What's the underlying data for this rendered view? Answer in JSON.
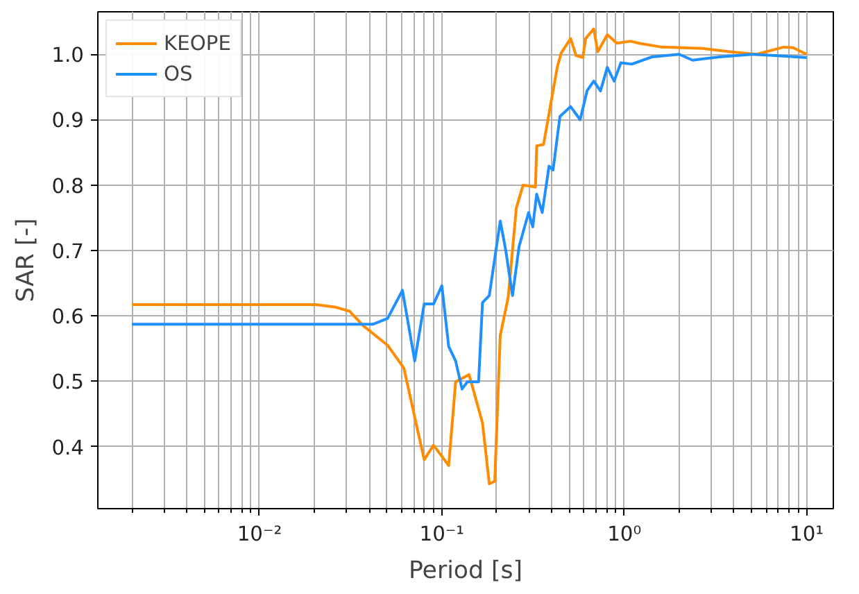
{
  "chart_data": {
    "type": "line",
    "xlabel": "Period [s]",
    "ylabel": "SAR [-]",
    "log": "x",
    "grid": true,
    "legend": "top left",
    "xlim": [
      0.0013,
      14
    ],
    "ylim": [
      0.305,
      1.065
    ],
    "xticks": [
      {
        "value": 0.01,
        "label": "10⁻²"
      },
      {
        "value": 0.1,
        "label": "10⁻¹"
      },
      {
        "value": 1,
        "label": "10⁰"
      },
      {
        "value": 10,
        "label": "10¹"
      }
    ],
    "yticks": [
      {
        "value": 0.4,
        "label": "0.4"
      },
      {
        "value": 0.5,
        "label": "0.5"
      },
      {
        "value": 0.6,
        "label": "0.6"
      },
      {
        "value": 0.7,
        "label": "0.7"
      },
      {
        "value": 0.8,
        "label": "0.8"
      },
      {
        "value": 0.9,
        "label": "0.9"
      },
      {
        "value": 1.0,
        "label": "1.0"
      }
    ],
    "series": [
      {
        "name": "KEOPE",
        "color": "#ff8c00",
        "x": [
          0.002,
          0.0204,
          0.0263,
          0.0312,
          0.037,
          0.0504,
          0.0619,
          0.08,
          0.09,
          0.109,
          0.119,
          0.141,
          0.167,
          0.182,
          0.195,
          0.209,
          0.231,
          0.256,
          0.279,
          0.326,
          0.331,
          0.361,
          0.429,
          0.451,
          0.508,
          0.544,
          0.593,
          0.614,
          0.68,
          0.716,
          0.807,
          0.91,
          1.08,
          1.2,
          1.6,
          2.68,
          3.77,
          5.31,
          7.48,
          8.43,
          10
        ],
        "values": [
          0.617,
          0.617,
          0.613,
          0.607,
          0.585,
          0.555,
          0.52,
          0.38,
          0.402,
          0.371,
          0.499,
          0.51,
          0.436,
          0.343,
          0.347,
          0.57,
          0.628,
          0.765,
          0.8,
          0.797,
          0.86,
          0.862,
          0.98,
          1.002,
          1.024,
          0.998,
          0.995,
          1.024,
          1.039,
          1.004,
          1.03,
          1.017,
          1.02,
          1.017,
          1.011,
          1.009,
          1.004,
          1.0,
          1.011,
          1.01,
          1.0
        ]
      },
      {
        "name": "OS",
        "color": "#1e90ff",
        "x": [
          0.002,
          0.0418,
          0.0504,
          0.0608,
          0.071,
          0.08,
          0.09,
          0.1,
          0.109,
          0.119,
          0.129,
          0.138,
          0.159,
          0.167,
          0.182,
          0.209,
          0.224,
          0.244,
          0.265,
          0.299,
          0.315,
          0.331,
          0.355,
          0.387,
          0.407,
          0.444,
          0.508,
          0.573,
          0.625,
          0.68,
          0.741,
          0.807,
          0.88,
          0.958,
          1.1,
          1.42,
          2.0,
          2.37,
          3.34,
          5.04,
          6.64,
          10
        ],
        "values": [
          0.587,
          0.587,
          0.596,
          0.639,
          0.531,
          0.618,
          0.618,
          0.646,
          0.553,
          0.531,
          0.488,
          0.499,
          0.499,
          0.62,
          0.631,
          0.745,
          0.7,
          0.631,
          0.706,
          0.758,
          0.736,
          0.786,
          0.758,
          0.829,
          0.823,
          0.905,
          0.92,
          0.9,
          0.944,
          0.959,
          0.944,
          0.98,
          0.959,
          0.987,
          0.985,
          0.996,
          1.0,
          0.991,
          0.996,
          1.0,
          0.998,
          0.995
        ]
      }
    ]
  }
}
